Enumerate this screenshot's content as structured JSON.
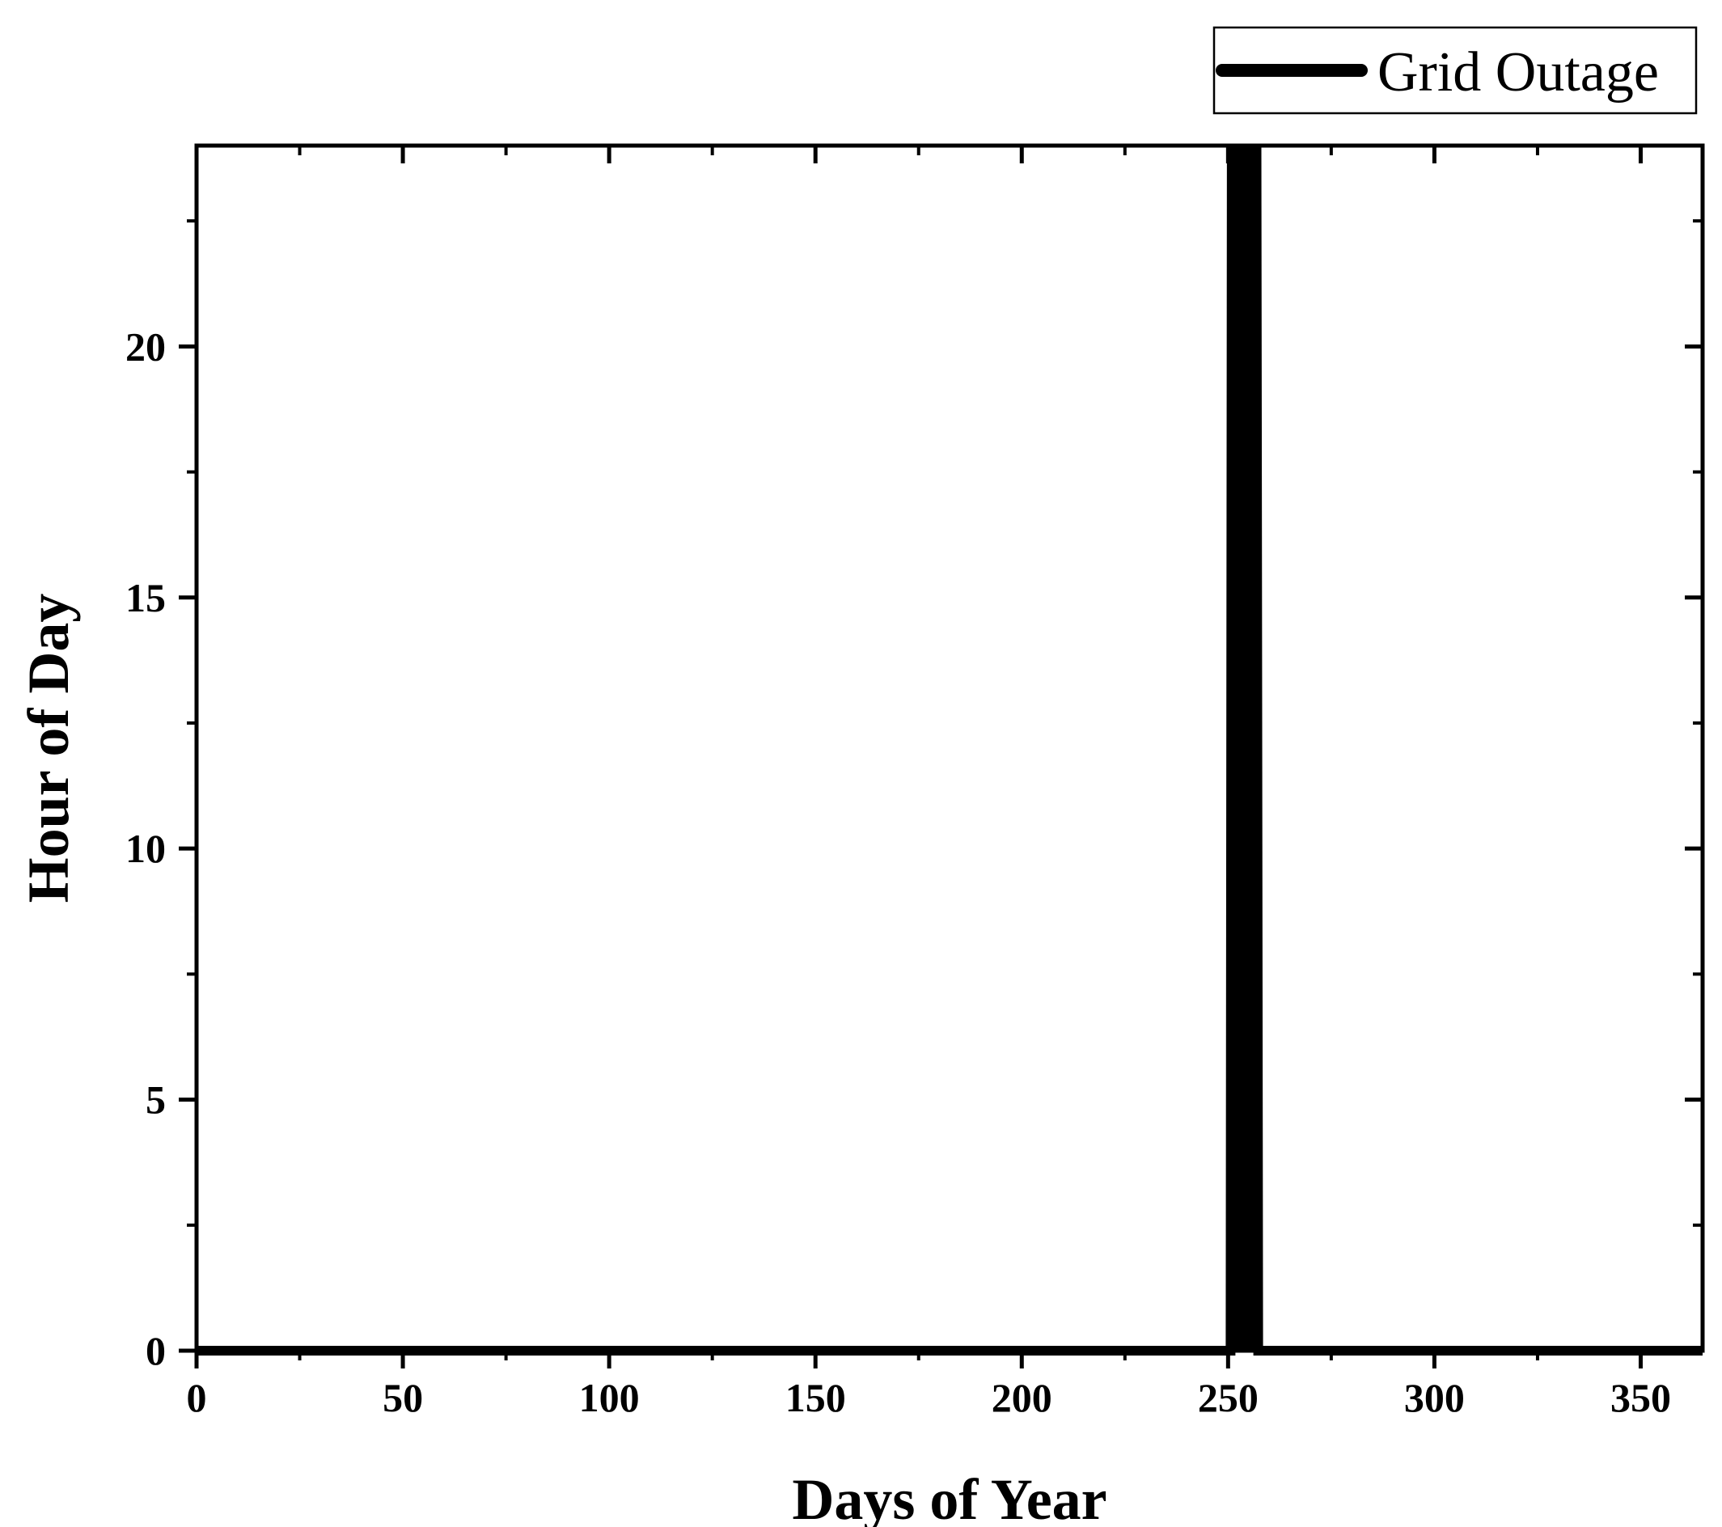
{
  "chart_data": {
    "type": "line",
    "xlabel": "Days of Year",
    "ylabel": "Hour of Day",
    "xlim": [
      0,
      365
    ],
    "ylim": [
      0,
      24
    ],
    "x_ticks": [
      0,
      50,
      100,
      150,
      200,
      250,
      300,
      350
    ],
    "y_ticks": [
      0,
      5,
      10,
      15,
      20
    ],
    "x_tick_labels": [
      "0",
      "50",
      "100",
      "150",
      "200",
      "250",
      "300",
      "350"
    ],
    "y_tick_labels": [
      "0",
      "5",
      "10",
      "15",
      "20"
    ],
    "grid": false,
    "legend_position": "top-right, above plot",
    "series": [
      {
        "name": "Grid Outage",
        "color": "#000000",
        "x": [
          0,
          250.6,
          250.9,
          251.2,
          251.5,
          251.8,
          252.1,
          252.4,
          252.7,
          253.0,
          253.3,
          253.6,
          253.9,
          254.2,
          254.5,
          254.8,
          255.1,
          255.4,
          255.7,
          256.0,
          256.3,
          256.6,
          256.9,
          257.3,
          365
        ],
        "y": [
          0,
          0,
          24,
          0,
          24,
          0,
          24,
          0,
          24,
          0,
          24,
          3,
          24,
          0,
          24,
          0,
          24,
          0,
          24,
          0,
          24,
          0,
          24,
          0,
          0
        ]
      }
    ]
  }
}
